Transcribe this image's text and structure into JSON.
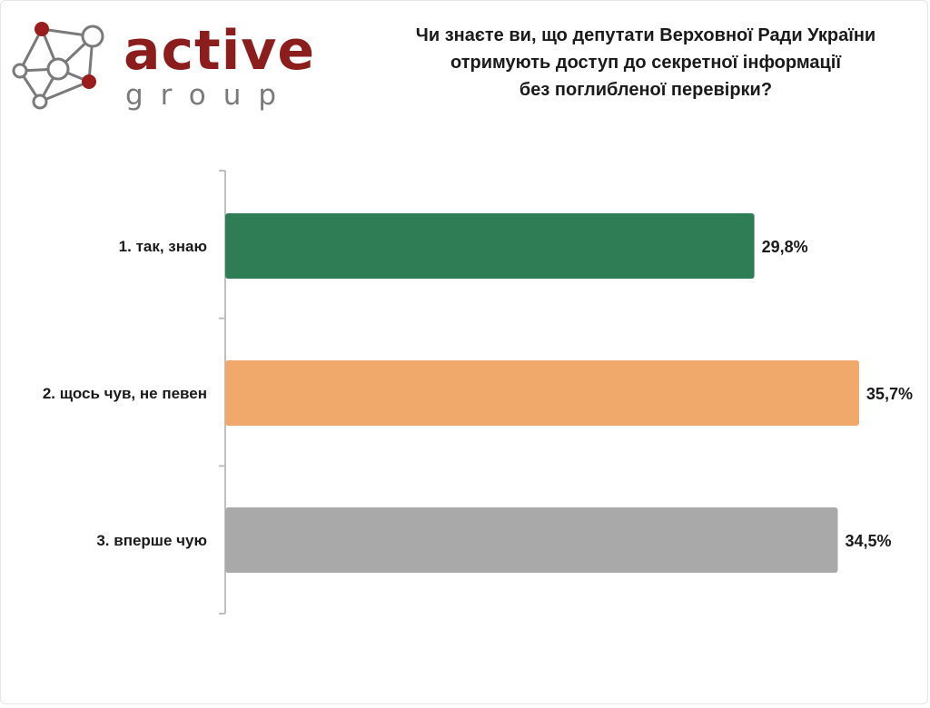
{
  "logo": {
    "word": "active",
    "sub": "group",
    "colors": {
      "word": "#8c1d1d",
      "sub": "#7a7a7a",
      "node_dark": "#9b1c1c",
      "node_light": "#ffffff",
      "stroke": "#7a7a7a"
    }
  },
  "chart_data": {
    "type": "bar",
    "orientation": "horizontal",
    "title_lines": [
      "Чи знаєте ви, що депутати Верховної Ради України",
      "отримують доступ до секретної інформації",
      "без поглибленої перевірки?"
    ],
    "categories": [
      "1. так, знаю",
      "2. щось чув, не певен",
      "3. вперше чую"
    ],
    "values": [
      29.8,
      35.7,
      34.5
    ],
    "value_labels": [
      "29,8%",
      "35,7%",
      "34,5%"
    ],
    "colors": [
      "#2e7d55",
      "#f0a96a",
      "#a9a9a9"
    ],
    "xlim": [
      0,
      40
    ],
    "xlabel": "",
    "ylabel": "",
    "grid": false,
    "legend": "none"
  }
}
